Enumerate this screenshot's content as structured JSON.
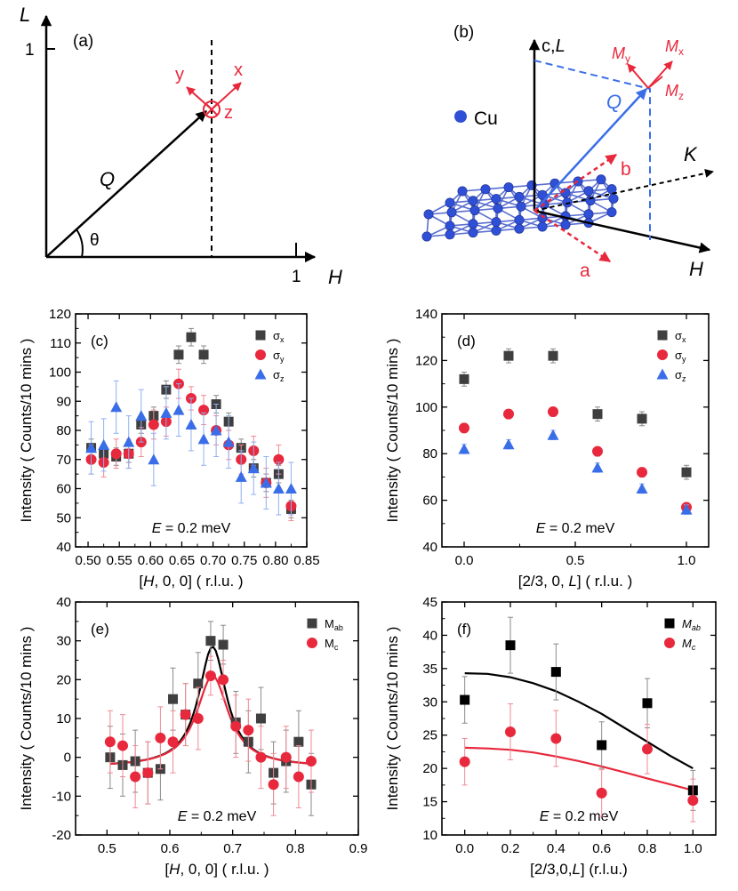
{
  "figure": {
    "colors": {
      "black": "#000000",
      "red": "#e8283c",
      "blue": "#3a6ee8",
      "gray": "#3f3f3f",
      "cu_blue": "#2f4fd6"
    }
  },
  "diagram_a": {
    "panel_label": "(a)",
    "axis_v_label": "L",
    "axis_v_tick": "1",
    "axis_h_label": "H",
    "axis_h_tick": "1",
    "vector_label": "Q",
    "angle_label": "θ",
    "frame_x": "x",
    "frame_y": "y",
    "frame_z": "z"
  },
  "diagram_b": {
    "panel_label": "(b)",
    "c_axis_label_c": "c,",
    "c_axis_label_L": "L",
    "h_label": "H",
    "k_label": "K",
    "q_label": "Q",
    "a_label": "a",
    "b_label": "b",
    "atom_label": "Cu",
    "my": "M",
    "my_sub": "y",
    "mx": "M",
    "mx_sub": "x",
    "mz": "M",
    "mz_sub": "z"
  },
  "chart_data": [
    {
      "id": "c",
      "panel_label": "(c)",
      "type": "scatter",
      "xlabel_pre": "[",
      "xlabel_var": "H",
      "xlabel_post": ", 0, 0] ( r.l.u. )",
      "ylabel": "Intensity ( Counts/10 mins )",
      "xlim": [
        0.48,
        0.85
      ],
      "ylim": [
        40,
        120
      ],
      "xticks": [
        0.5,
        0.55,
        0.6,
        0.65,
        0.7,
        0.75,
        0.8,
        0.85
      ],
      "xtick_labels": [
        "0.50",
        "0.55",
        "0.60",
        "0.65",
        "0.70",
        "0.75",
        "0.80",
        "0.85"
      ],
      "yticks": [
        40,
        50,
        60,
        70,
        80,
        90,
        100,
        110,
        120
      ],
      "ytick_labels": [
        "40",
        "50",
        "60",
        "70",
        "80",
        "90",
        "100",
        "110",
        "120"
      ],
      "annotation_var": "E",
      "annotation_text": " = 0.2 meV",
      "legend_position": "top-right",
      "series": [
        {
          "name": "σ",
          "sub": "x",
          "marker": "square",
          "color": "#3f3f3f",
          "x": [
            0.505,
            0.525,
            0.545,
            0.565,
            0.585,
            0.605,
            0.625,
            0.645,
            0.665,
            0.685,
            0.705,
            0.725,
            0.745,
            0.765,
            0.785,
            0.805,
            0.825
          ],
          "y": [
            74,
            72,
            71,
            72,
            82,
            85,
            94,
            106,
            112,
            106,
            89,
            83,
            74,
            67,
            62,
            65,
            53
          ],
          "err": [
            3,
            3,
            3,
            3,
            3,
            3,
            3,
            3,
            3,
            3,
            3,
            3,
            3,
            3,
            3,
            3,
            3
          ]
        },
        {
          "name": "σ",
          "sub": "y",
          "marker": "circle",
          "color": "#e8283c",
          "x": [
            0.505,
            0.525,
            0.545,
            0.565,
            0.585,
            0.605,
            0.625,
            0.645,
            0.665,
            0.685,
            0.705,
            0.725,
            0.745,
            0.765,
            0.785,
            0.805,
            0.825
          ],
          "y": [
            70,
            69,
            72,
            72,
            76,
            82,
            83,
            96,
            91,
            87,
            80,
            75,
            70,
            73,
            62,
            70,
            54
          ],
          "err": [
            5,
            5,
            5,
            5,
            5,
            5,
            5,
            5,
            4,
            5,
            5,
            5,
            5,
            5,
            5,
            5,
            5
          ]
        },
        {
          "name": "σ",
          "sub": "z",
          "marker": "triangle",
          "color": "#3a6ee8",
          "x": [
            0.505,
            0.525,
            0.545,
            0.565,
            0.585,
            0.605,
            0.625,
            0.645,
            0.665,
            0.685,
            0.705,
            0.725,
            0.745,
            0.765,
            0.785,
            0.805,
            0.825
          ],
          "y": [
            74,
            75,
            88,
            76,
            85,
            70,
            86,
            87,
            82,
            77,
            80,
            76,
            64,
            67,
            62,
            60,
            60
          ],
          "err": [
            9,
            9,
            9,
            9,
            9,
            9,
            9,
            9,
            9,
            9,
            9,
            9,
            9,
            9,
            9,
            9,
            9
          ]
        }
      ]
    },
    {
      "id": "d",
      "panel_label": "(d)",
      "type": "scatter",
      "xlabel": "[2/3, 0, L] ( r.l.u. )",
      "xlabel_pre": "[2/3, 0, ",
      "xlabel_var": "L",
      "xlabel_post": "] ( r.l.u. )",
      "ylabel": "Intensity ( Counts/10 mins )",
      "xlim": [
        -0.1,
        1.1
      ],
      "ylim": [
        40,
        140
      ],
      "xticks": [
        0,
        0.5,
        1.0
      ],
      "xtick_labels": [
        "0.0",
        "0.5",
        "1.0"
      ],
      "yticks": [
        40,
        60,
        80,
        100,
        120,
        140
      ],
      "ytick_labels": [
        "40",
        "60",
        "80",
        "100",
        "120",
        "140"
      ],
      "annotation_var": "E",
      "annotation_text": " = 0.2 meV",
      "legend_position": "top-right",
      "series": [
        {
          "name": "σ",
          "sub": "x",
          "marker": "square",
          "color": "#3f3f3f",
          "x": [
            0,
            0.2,
            0.4,
            0.6,
            0.8,
            1.0
          ],
          "y": [
            112,
            122,
            122,
            97,
            95,
            72
          ],
          "err": [
            3,
            3,
            3,
            3,
            3,
            3
          ]
        },
        {
          "name": "σ",
          "sub": "y",
          "marker": "circle",
          "color": "#e8283c",
          "x": [
            0,
            0.2,
            0.4,
            0.6,
            0.8,
            1.0
          ],
          "y": [
            91,
            97,
            98,
            81,
            72,
            57
          ],
          "err": [
            2,
            2,
            2,
            2,
            2,
            2
          ]
        },
        {
          "name": "σ",
          "sub": "z",
          "marker": "triangle",
          "color": "#3a6ee8",
          "x": [
            0,
            0.2,
            0.4,
            0.6,
            0.8,
            1.0
          ],
          "y": [
            82,
            84,
            88,
            74,
            65,
            56
          ],
          "err": [
            2,
            2,
            2,
            2,
            2,
            2
          ]
        }
      ]
    },
    {
      "id": "e",
      "panel_label": "(e)",
      "type": "scatter",
      "xlabel_pre": "[",
      "xlabel_var": "H",
      "xlabel_post": ", 0, 0] ( r.l.u. )",
      "ylabel": "Intensity ( Counts/10 mins )",
      "xlim": [
        0.45,
        0.9
      ],
      "ylim": [
        -20,
        40
      ],
      "xticks": [
        0.5,
        0.6,
        0.7,
        0.8,
        0.9
      ],
      "xtick_labels": [
        "0.5",
        "0.6",
        "0.7",
        "0.8",
        "0.9"
      ],
      "yticks": [
        -20,
        -10,
        0,
        10,
        20,
        30,
        40
      ],
      "ytick_labels": [
        "-20",
        "-10",
        "0",
        "10",
        "20",
        "30",
        "40"
      ],
      "annotation_var": "E",
      "annotation_text": " = 0.2 meV",
      "legend_position": "top-right",
      "series": [
        {
          "name": "M",
          "sub": "ab",
          "marker": "square",
          "color": "#3f3f3f",
          "fit_color": "#000000",
          "x": [
            0.505,
            0.525,
            0.545,
            0.565,
            0.585,
            0.605,
            0.625,
            0.645,
            0.665,
            0.685,
            0.705,
            0.725,
            0.745,
            0.765,
            0.785,
            0.805,
            0.825
          ],
          "y": [
            0,
            -2,
            -1,
            -4,
            -3,
            15,
            11,
            19,
            30,
            29,
            9,
            4,
            10,
            -4,
            -1,
            4,
            -7
          ],
          "err": [
            8,
            8,
            8,
            8,
            8,
            8,
            8,
            8,
            5,
            5,
            8,
            8,
            8,
            8,
            8,
            8,
            8
          ],
          "fit": {
            "amp": 31,
            "x0": 0.668,
            "gamma": 0.027,
            "base": -2.5
          }
        },
        {
          "name": "M",
          "sub": "c",
          "marker": "circle",
          "color": "#e8283c",
          "fit_color": "#e8283c",
          "x": [
            0.505,
            0.525,
            0.545,
            0.565,
            0.585,
            0.605,
            0.625,
            0.645,
            0.665,
            0.685,
            0.705,
            0.725,
            0.745,
            0.765,
            0.785,
            0.805,
            0.825
          ],
          "y": [
            4,
            3,
            -5,
            -4,
            5,
            4,
            11,
            10,
            21,
            20,
            8,
            7,
            0,
            -7,
            0,
            -5,
            -1
          ],
          "err": [
            8,
            8,
            8,
            8,
            8,
            8,
            8,
            8,
            5,
            5,
            8,
            8,
            8,
            8,
            8,
            8,
            8
          ],
          "fit": {
            "amp": 23.5,
            "x0": 0.668,
            "gamma": 0.031,
            "base": -2.5
          }
        }
      ]
    },
    {
      "id": "f",
      "panel_label": "(f)",
      "type": "scatter",
      "xlabel": "[2/3,0,L] (r.l.u.)",
      "xlabel_pre": "[2/3,0,",
      "xlabel_var": "L",
      "xlabel_post": "] (r.l.u.)",
      "ylabel": "Intensity ( Counts/10 mins )",
      "xlim": [
        -0.1,
        1.1
      ],
      "ylim": [
        10,
        45
      ],
      "xticks": [
        0,
        0.2,
        0.4,
        0.6,
        0.8,
        1.0
      ],
      "xtick_labels": [
        "0.0",
        "0.2",
        "0.4",
        "0.6",
        "0.8",
        "1.0"
      ],
      "yticks": [
        10,
        15,
        20,
        25,
        30,
        35,
        40,
        45
      ],
      "ytick_labels": [
        "10",
        "15",
        "20",
        "25",
        "30",
        "35",
        "40",
        "45"
      ],
      "annotation_var": "E",
      "annotation_text": " = 0.2 meV",
      "legend_position": "top-right",
      "series": [
        {
          "name": "M",
          "sub": "ab",
          "marker": "square",
          "color": "#000000",
          "fit_color": "#000000",
          "x": [
            0,
            0.2,
            0.4,
            0.6,
            0.8,
            1.0
          ],
          "y": [
            30.3,
            38.5,
            34.5,
            23.5,
            29.8,
            16.7
          ],
          "err": [
            3.5,
            4.2,
            4.2,
            3.5,
            3.7,
            3
          ],
          "fit_x": [
            0,
            0.1,
            0.2,
            0.3,
            0.4,
            0.5,
            0.6,
            0.7,
            0.8,
            0.9,
            1.0
          ],
          "fit_y": [
            34.3,
            34.2,
            33.7,
            32.8,
            31.6,
            30.0,
            28.2,
            26.1,
            24.0,
            21.9,
            20.0
          ]
        },
        {
          "name": "M",
          "sub": "c",
          "marker": "circle",
          "color": "#e8283c",
          "fit_color": "#e8283c",
          "x": [
            0,
            0.2,
            0.4,
            0.6,
            0.8,
            1.0
          ],
          "y": [
            21,
            25.5,
            24.5,
            16.3,
            22.9,
            15.2
          ],
          "err": [
            3.5,
            4.2,
            4.2,
            3.5,
            3.7,
            3.2
          ],
          "fit_x": [
            0,
            0.1,
            0.2,
            0.3,
            0.4,
            0.5,
            0.6,
            0.7,
            0.8,
            0.9,
            1.0
          ],
          "fit_y": [
            23.1,
            23.0,
            22.8,
            22.4,
            21.8,
            21.1,
            20.3,
            19.4,
            18.5,
            17.6,
            16.7
          ]
        }
      ]
    }
  ]
}
